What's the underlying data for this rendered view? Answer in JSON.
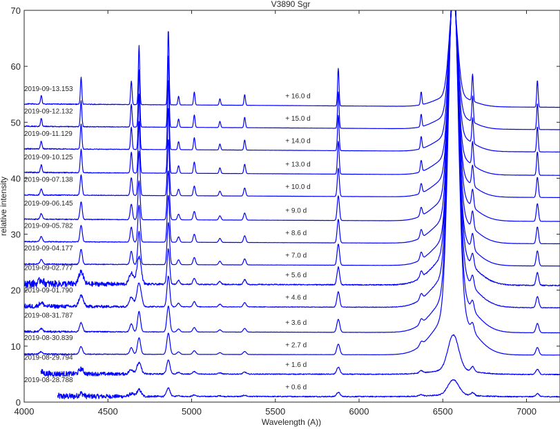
{
  "chart_data": {
    "type": "line",
    "title": "V3890 Sgr",
    "xlabel": "Wavelength (A))",
    "ylabel": "relative intensity",
    "xlim": [
      4000,
      7200
    ],
    "ylim": [
      0,
      70
    ],
    "x_ticks": [
      4000,
      4500,
      5000,
      5500,
      6000,
      6500,
      7000
    ],
    "y_ticks": [
      0,
      10,
      20,
      30,
      40,
      50,
      60,
      70
    ],
    "grid": false,
    "legend": "none",
    "line_color": "#0000ff",
    "emission_line_peaks": [
      {
        "wavelength": 4102,
        "rel_strength": 0.08
      },
      {
        "wavelength": 4340,
        "rel_strength": 0.25
      },
      {
        "wavelength": 4640,
        "rel_strength": 0.22
      },
      {
        "wavelength": 4686,
        "rel_strength": 0.55
      },
      {
        "wavelength": 4861,
        "rel_strength": 0.7
      },
      {
        "wavelength": 4922,
        "rel_strength": 0.08
      },
      {
        "wavelength": 5016,
        "rel_strength": 0.12
      },
      {
        "wavelength": 5169,
        "rel_strength": 0.06
      },
      {
        "wavelength": 5317,
        "rel_strength": 0.1
      },
      {
        "wavelength": 5876,
        "rel_strength": 0.35
      },
      {
        "wavelength": 6371,
        "rel_strength": 0.12
      },
      {
        "wavelength": 6563,
        "rel_strength": 1.0
      },
      {
        "wavelength": 6678,
        "rel_strength": 0.25
      },
      {
        "wavelength": 7065,
        "rel_strength": 0.25
      }
    ],
    "series": [
      {
        "name": "2019-08-28.788",
        "offset_label": "+ 0.6 d",
        "baseline": 1.0,
        "start_wavelength": 4200,
        "noise": 0.6,
        "line_scale": 0.18,
        "halpha_peak": 3.7,
        "halpha_width": 45
      },
      {
        "name": "2019-08-29.794",
        "offset_label": "+ 1.6 d",
        "baseline": 5.0,
        "start_wavelength": 4100,
        "noise": 0.5,
        "line_scale": 0.3,
        "halpha_peak": 11.3,
        "halpha_width": 45
      },
      {
        "name": "2019-08-30.839",
        "offset_label": "+ 2.7 d",
        "baseline": 8.5,
        "start_wavelength": 4000,
        "noise": 0.1,
        "line_scale": 0.45,
        "halpha_peak": 70,
        "halpha_width": 40
      },
      {
        "name": "2019-08-31.787",
        "offset_label": "+ 3.6 d",
        "baseline": 12.5,
        "start_wavelength": 4000,
        "noise": 0.15,
        "line_scale": 0.55,
        "halpha_peak": 70,
        "halpha_width": 40
      },
      {
        "name": "2019-09-01.790",
        "offset_label": "+ 4.6 d",
        "baseline": 17.0,
        "start_wavelength": 4000,
        "noise": 0.35,
        "line_scale": 0.65,
        "halpha_peak": 70,
        "halpha_width": 40
      },
      {
        "name": "2019-09-02.777",
        "offset_label": "+ 5.6 d",
        "baseline": 21.0,
        "start_wavelength": 4000,
        "noise": 0.6,
        "line_scale": 0.75,
        "halpha_peak": 70,
        "halpha_width": 40
      },
      {
        "name": "2019-09-04.177",
        "offset_label": "+ 7.0 d",
        "baseline": 24.5,
        "start_wavelength": 4000,
        "noise": 0.1,
        "line_scale": 0.9,
        "halpha_peak": 70,
        "halpha_width": 38
      },
      {
        "name": "2019-09-05.782",
        "offset_label": "+ 8.6 d",
        "baseline": 28.5,
        "start_wavelength": 4000,
        "noise": 0.08,
        "line_scale": 1.0,
        "halpha_peak": 70,
        "halpha_width": 38
      },
      {
        "name": "2019-09-06.145",
        "offset_label": "+ 9.0 d",
        "baseline": 32.5,
        "start_wavelength": 4000,
        "noise": 0.08,
        "line_scale": 1.05,
        "halpha_peak": 70,
        "halpha_width": 38
      },
      {
        "name": "2019-09-07.138",
        "offset_label": "+ 10.0 d",
        "baseline": 36.8,
        "start_wavelength": 4000,
        "noise": 0.08,
        "line_scale": 1.2,
        "halpha_peak": 70,
        "halpha_width": 36
      },
      {
        "name": "2019-09-10.125",
        "offset_label": "+ 13.0 d",
        "baseline": 40.8,
        "start_wavelength": 4000,
        "noise": 0.08,
        "line_scale": 1.4,
        "halpha_peak": 70,
        "halpha_width": 35
      },
      {
        "name": "2019-09-11.129",
        "offset_label": "+ 14.0 d",
        "baseline": 45.0,
        "start_wavelength": 4000,
        "noise": 0.08,
        "line_scale": 1.5,
        "halpha_peak": 70,
        "halpha_width": 35
      },
      {
        "name": "2019-09-12.132",
        "offset_label": "+ 15.0 d",
        "baseline": 49.0,
        "start_wavelength": 4000,
        "noise": 0.08,
        "line_scale": 1.55,
        "halpha_peak": 70,
        "halpha_width": 35
      },
      {
        "name": "2019-09-13.153",
        "offset_label": "+ 16.0 d",
        "baseline": 53.0,
        "start_wavelength": 4000,
        "noise": 0.08,
        "line_scale": 1.6,
        "halpha_peak": 70,
        "halpha_width": 35
      }
    ]
  }
}
